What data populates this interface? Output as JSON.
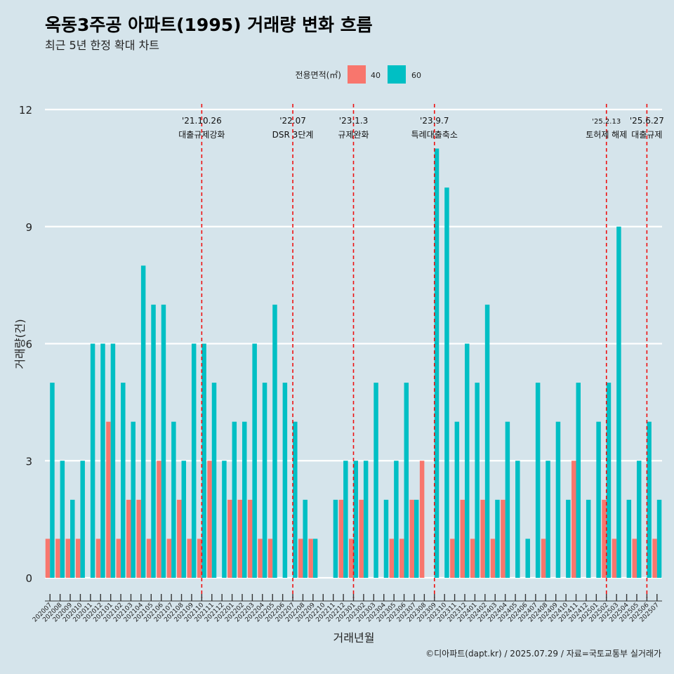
{
  "chart_data": {
    "type": "bar",
    "title": "옥동3주공 아파트(1995) 거래량 변화 흐름",
    "subtitle": "최근 5년 한정 확대 차트",
    "xlabel": "거래년월",
    "ylabel": "거래량(건)",
    "ylim": [
      0,
      12
    ],
    "yticks": [
      0,
      3,
      6,
      9,
      12
    ],
    "legend": {
      "title": "전용면적(㎡)",
      "placement": "top-center",
      "entries": [
        {
          "name": "40",
          "color": "#f8766d"
        },
        {
          "name": "60",
          "color": "#00bfc4"
        }
      ]
    },
    "categories": [
      "202007",
      "202008",
      "202009",
      "202010",
      "202011",
      "202012",
      "202101",
      "202102",
      "202103",
      "202104",
      "202105",
      "202106",
      "202107",
      "202108",
      "202109",
      "202110",
      "202111",
      "202112",
      "202201",
      "202202",
      "202203",
      "202204",
      "202205",
      "202206",
      "202207",
      "202208",
      "202209",
      "202210",
      "202211",
      "202212",
      "202301",
      "202302",
      "202303",
      "202304",
      "202305",
      "202306",
      "202307",
      "202308",
      "202309",
      "202310",
      "202311",
      "202312",
      "202401",
      "202402",
      "202403",
      "202404",
      "202405",
      "202406",
      "202407",
      "202408",
      "202409",
      "202410",
      "202411",
      "202412",
      "202501",
      "202502",
      "202503",
      "202504",
      "202505",
      "202506",
      "202507"
    ],
    "series": [
      {
        "name": "40",
        "color": "#f8766d",
        "values": [
          1,
          1,
          1,
          1,
          0,
          1,
          4,
          1,
          2,
          2,
          1,
          3,
          1,
          2,
          1,
          1,
          3,
          0,
          2,
          2,
          2,
          1,
          1,
          0,
          0,
          1,
          1,
          0,
          0,
          2,
          1,
          2,
          0,
          0,
          1,
          1,
          2,
          3,
          0,
          0,
          1,
          2,
          1,
          2,
          1,
          2,
          0,
          0,
          0,
          1,
          0,
          0,
          3,
          0,
          0,
          2,
          1,
          0,
          1,
          0,
          1
        ]
      },
      {
        "name": "60",
        "color": "#00bfc4",
        "values": [
          5,
          3,
          2,
          3,
          6,
          6,
          6,
          5,
          4,
          8,
          7,
          7,
          4,
          3,
          6,
          6,
          5,
          3,
          4,
          4,
          6,
          5,
          7,
          5,
          4,
          2,
          1,
          0,
          2,
          3,
          3,
          3,
          5,
          2,
          3,
          5,
          2,
          0,
          11,
          10,
          4,
          6,
          5,
          7,
          2,
          4,
          3,
          1,
          5,
          3,
          4,
          2,
          5,
          2,
          4,
          5,
          9,
          2,
          3,
          4,
          2
        ]
      }
    ],
    "annotations": [
      {
        "month": "202110",
        "date": "'21.10.26",
        "label": "대출규제강화"
      },
      {
        "month": "202207",
        "date": "'22.07",
        "label": "DSR 3단계"
      },
      {
        "month": "202301",
        "date": "'23.1.3",
        "label": "규제완화"
      },
      {
        "month": "202309",
        "date": "'23.9.7",
        "label": "특례대출축소"
      },
      {
        "month": "202502",
        "date": "'25.2.13",
        "label": "토허제 해제"
      },
      {
        "month": "202506",
        "date": "'25.6.27",
        "label": "대출규제"
      }
    ],
    "caption": "©디아파트(dapt.kr) / 2025.07.29 / 자료=국토교통부 실거래가"
  }
}
